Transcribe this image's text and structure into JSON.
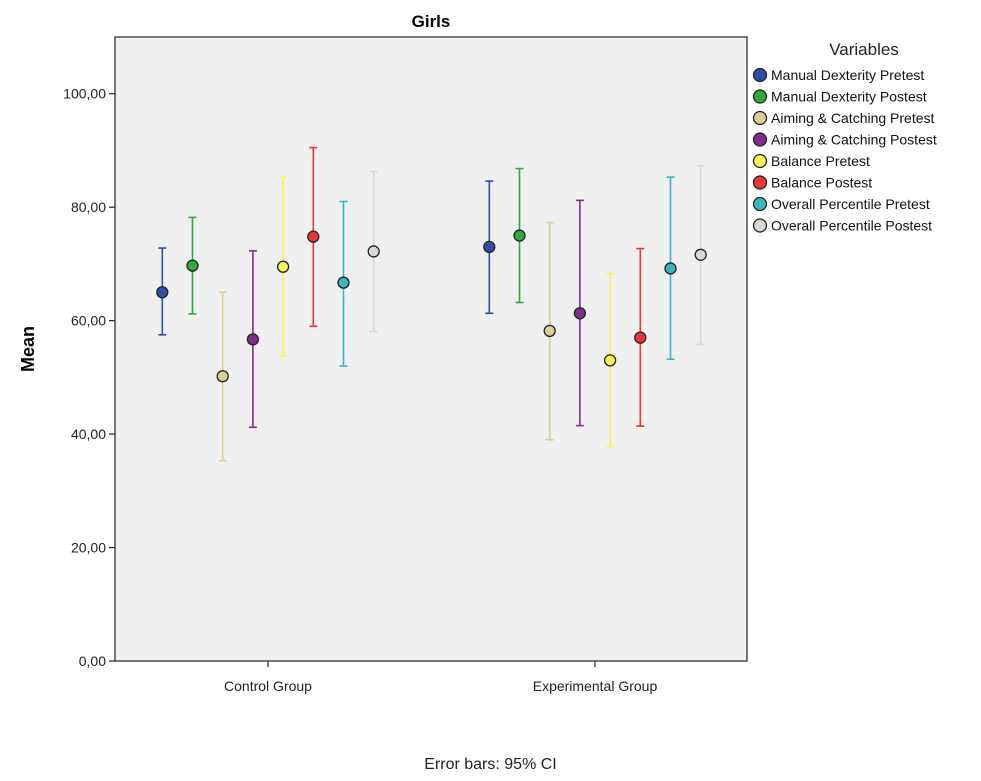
{
  "chart_data": {
    "type": "scatter",
    "title": "Girls",
    "ylabel": "Mean",
    "xlabel": "",
    "ylim": [
      0,
      110
    ],
    "y_ticks": [
      "0,00",
      "20,00",
      "40,00",
      "60,00",
      "80,00",
      "100,00"
    ],
    "y_tick_values": [
      0,
      20,
      40,
      60,
      80,
      100
    ],
    "categories": [
      "Control Group",
      "Experimental Group"
    ],
    "legend_title": "Variables",
    "legend_position": "right",
    "series": [
      {
        "name": "Manual Dexterity Pretest",
        "color": "#2f4ea8",
        "mean": [
          65.0,
          73.0
        ],
        "ci_low": [
          57.5,
          61.3
        ],
        "ci_high": [
          72.8,
          84.6
        ]
      },
      {
        "name": "Manual Dexterity Postest",
        "color": "#2eaa3c",
        "mean": [
          69.7,
          75.0
        ],
        "ci_low": [
          61.2,
          63.2
        ],
        "ci_high": [
          78.2,
          86.8
        ]
      },
      {
        "name": "Aiming & Catching Pretest",
        "color": "#d9cf9a",
        "mean": [
          50.2,
          58.2
        ],
        "ci_low": [
          35.3,
          39.0
        ],
        "ci_high": [
          65.0,
          77.3
        ]
      },
      {
        "name": "Aiming & Catching Postest",
        "color": "#7e2f8c",
        "mean": [
          56.7,
          61.3
        ],
        "ci_low": [
          41.2,
          41.5
        ],
        "ci_high": [
          72.3,
          81.2
        ]
      },
      {
        "name": "Balance Pretest",
        "color": "#f8f35a",
        "mean": [
          69.5,
          53.0
        ],
        "ci_low": [
          53.8,
          37.8
        ],
        "ci_high": [
          85.3,
          68.3
        ]
      },
      {
        "name": "Balance Postest",
        "color": "#e8363a",
        "mean": [
          74.8,
          57.0
        ],
        "ci_low": [
          59.0,
          41.4
        ],
        "ci_high": [
          90.5,
          72.7
        ]
      },
      {
        "name": "Overall Percentile Pretest",
        "color": "#3ab6bf",
        "mean": [
          66.7,
          69.2
        ],
        "ci_low": [
          52.0,
          53.2
        ],
        "ci_high": [
          81.0,
          85.3
        ]
      },
      {
        "name": "Overall Percentile Postest",
        "color": "#d9d9d9",
        "mean": [
          72.2,
          71.6
        ],
        "ci_low": [
          58.1,
          55.8
        ],
        "ci_high": [
          86.3,
          87.3
        ]
      }
    ],
    "footnote": "Error bars: 95% CI"
  }
}
